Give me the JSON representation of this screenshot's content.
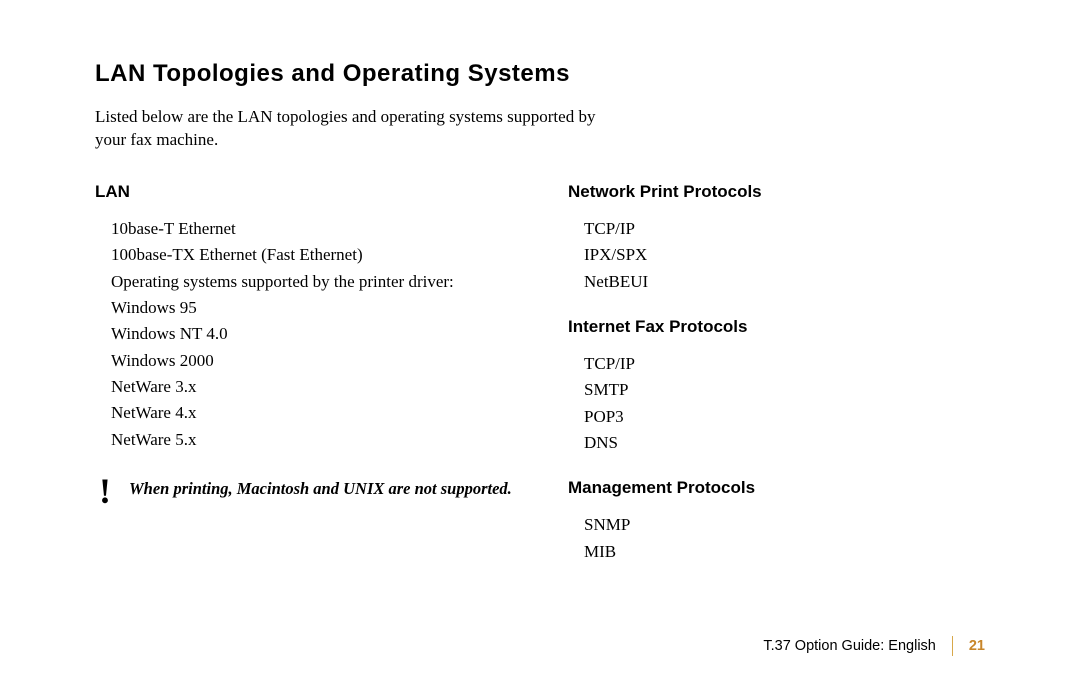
{
  "heading": "LAN Topologies and Operating Systems",
  "intro": "Listed below are the LAN topologies and operating systems supported by your fax machine.",
  "left": {
    "heading": "LAN",
    "items": [
      "10base-T Ethernet",
      "100base-TX Ethernet (Fast Ethernet)",
      "Operating systems supported by the printer driver:",
      "Windows 95",
      "Windows NT 4.0",
      "Windows 2000",
      "NetWare 3.x",
      "NetWare 4.x",
      "NetWare 5.x"
    ],
    "note_icon": "!",
    "note_text": "When printing, Macintosh and UNIX are not supported."
  },
  "right": {
    "sections": [
      {
        "heading": "Network Print Protocols",
        "items": [
          "TCP/IP",
          "IPX/SPX",
          "NetBEUI"
        ]
      },
      {
        "heading": "Internet Fax Protocols",
        "items": [
          "TCP/IP",
          "SMTP",
          "POP3",
          "DNS"
        ]
      },
      {
        "heading": "Management Protocols",
        "items": [
          "SNMP",
          "MIB"
        ]
      }
    ]
  },
  "footer": {
    "title": "T.37 Option Guide: English",
    "page": "21"
  },
  "colors": {
    "text": "#000000",
    "accent": "#c8862a",
    "divider": "#d8a84a",
    "background": "#ffffff"
  }
}
